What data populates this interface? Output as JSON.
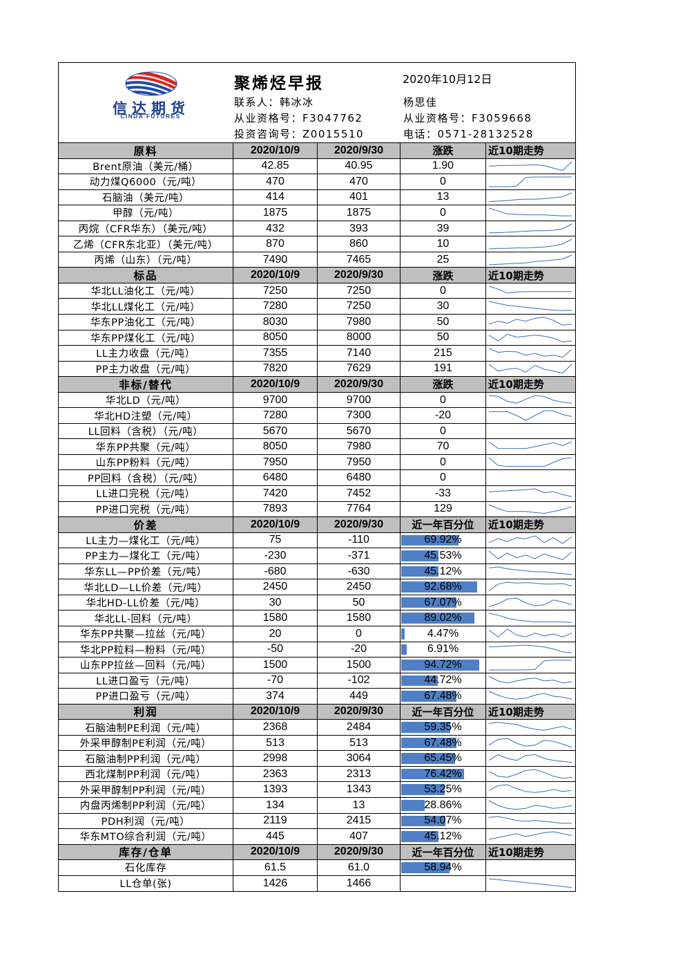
{
  "logo": {
    "name_cn": "信达期货",
    "name_en": "CINDA FUTURES"
  },
  "header": {
    "title": "聚烯烃早报",
    "date": "2020年10月12日",
    "contact_left": "联系人：韩冰冰",
    "contact_right": "杨思佳",
    "license_left": "从业资格号：F3047762",
    "license_right": "从业资格号：F3059668",
    "consult_left": "投资咨询号：Z0015510",
    "phone_right": "电话：0571-28132528"
  },
  "colors": {
    "header_bg": "#bfbfbf",
    "bar": "#4f7fc6",
    "spark": "#3a6db5",
    "logo_red": "#d9261c",
    "logo_blue": "#1f4aa8"
  },
  "sections": [
    {
      "headers": [
        "原料",
        "2020/10/9",
        "2020/9/30",
        "涨跌",
        "近10期走势"
      ],
      "rows": [
        {
          "label": "Brent原油（美元/桶）",
          "current": "42.85",
          "previous": "40.95",
          "change": "1.90",
          "trend": [
            0.55,
            0.6,
            0.62,
            0.63,
            0.65,
            0.7,
            0.6,
            0.35,
            0.1,
            1.0
          ]
        },
        {
          "label": "动力煤Q6000（元/吨）",
          "current": "470",
          "previous": "470",
          "change": "0",
          "trend": [
            0,
            0,
            0,
            0.05,
            0.95,
            1,
            1,
            1,
            1,
            1
          ]
        },
        {
          "label": "石脑油（美元/吨）",
          "current": "414",
          "previous": "401",
          "change": "13",
          "trend": [
            0.1,
            0.15,
            0.2,
            0.3,
            0.35,
            0.35,
            0.4,
            0.5,
            0.6,
            1.0
          ]
        },
        {
          "label": "甲醇（元/吨）",
          "current": "1875",
          "previous": "1875",
          "change": "0",
          "trend": [
            1,
            0.7,
            0.4,
            0.35,
            0.3,
            0.3,
            0.3,
            0.25,
            0.2,
            0.2
          ]
        },
        {
          "label": "丙烷（CFR华东）（美元/吨）",
          "current": "432",
          "previous": "393",
          "change": "39",
          "trend": [
            0.1,
            0.1,
            0.15,
            0.2,
            0.25,
            0.3,
            0.3,
            0.35,
            0.5,
            1.0
          ]
        },
        {
          "label": "乙烯（CFR东北亚）（美元/吨）",
          "current": "870",
          "previous": "860",
          "change": "10",
          "trend": [
            0,
            0.05,
            0.05,
            0.1,
            0.1,
            0.15,
            0.2,
            0.3,
            0.5,
            1.0
          ]
        },
        {
          "label": "丙烯（山东）（元/吨）",
          "current": "7490",
          "previous": "7465",
          "change": "25",
          "trend": [
            0,
            0.05,
            0.1,
            0.15,
            0.2,
            0.35,
            0.4,
            0.5,
            0.6,
            1.0
          ]
        }
      ]
    },
    {
      "headers": [
        "标品",
        "2020/10/9",
        "2020/9/30",
        "涨跌",
        "近10期走势"
      ],
      "rows": [
        {
          "label": "华北LL油化工（元/吨）",
          "current": "7250",
          "previous": "7250",
          "change": "0",
          "trend": [
            1,
            0.7,
            0.3,
            0.4,
            0.45,
            0.45,
            0.45,
            0.45,
            0.45,
            0.45
          ]
        },
        {
          "label": "华北LL煤化工（元/吨）",
          "current": "7280",
          "previous": "7250",
          "change": "30",
          "trend": [
            1,
            0.8,
            0.6,
            0.5,
            0.4,
            0.3,
            0.2,
            0.1,
            0.05,
            0.1
          ]
        },
        {
          "label": "华东PP油化工（元/吨）",
          "current": "8030",
          "previous": "7980",
          "change": "50",
          "trend": [
            0.3,
            0.6,
            0.4,
            0.8,
            0.6,
            0.9,
            1,
            0.7,
            0.2,
            0.3
          ]
        },
        {
          "label": "华东PP煤化工（元/吨）",
          "current": "8050",
          "previous": "8000",
          "change": "50",
          "trend": [
            0.8,
            0.2,
            0.9,
            0.6,
            0.7,
            0.8,
            0.7,
            0.5,
            0.1,
            0.2
          ]
        },
        {
          "label": "LL主力收盘（元/吨）",
          "current": "7355",
          "previous": "7140",
          "change": "215",
          "trend": [
            1,
            0.6,
            0.7,
            0.65,
            0.3,
            0.5,
            0.2,
            0.3,
            0.1,
            0.9
          ]
        },
        {
          "label": "PP主力收盘（元/吨）",
          "current": "7820",
          "previous": "7629",
          "change": "191",
          "trend": [
            1,
            0.3,
            0.5,
            0.6,
            0.2,
            0.9,
            0.5,
            0.3,
            0.1,
            1.0
          ]
        }
      ]
    },
    {
      "headers": [
        "非标/替代",
        "2020/10/9",
        "2020/9/30",
        "涨跌",
        "近10期走势"
      ],
      "rows": [
        {
          "label": "华北LD（元/吨）",
          "current": "9700",
          "previous": "9700",
          "change": "0",
          "trend": [
            1,
            0.9,
            0.4,
            0.2,
            0.6,
            1,
            0.9,
            0.5,
            0.3,
            0.2
          ]
        },
        {
          "label": "华北HD注塑（元/吨）",
          "current": "7280",
          "previous": "7300",
          "change": "-20",
          "trend": [
            0.9,
            0.9,
            0.9,
            0.5,
            0,
            0.5,
            1,
            1,
            0.6,
            0.4
          ]
        },
        {
          "label": "LL回料（含税）（元/吨）",
          "current": "5670",
          "previous": "5670",
          "change": "0",
          "trend": null
        },
        {
          "label": "华东PP共聚（元/吨）",
          "current": "8050",
          "previous": "7980",
          "change": "70",
          "trend": [
            1,
            0.3,
            0.3,
            0.3,
            0.3,
            0.5,
            0.7,
            0.9,
            0.6,
            1
          ]
        },
        {
          "label": "山东PP粉料（元/吨）",
          "current": "7950",
          "previous": "7950",
          "change": "0",
          "trend": [
            1,
            0.2,
            0.1,
            0.1,
            0.1,
            0.1,
            0.1,
            0.5,
            0.9,
            1
          ]
        },
        {
          "label": "PP回料（含税）（元/吨）",
          "current": "6480",
          "previous": "6480",
          "change": "0",
          "trend": null
        },
        {
          "label": "LL进口完税（元/吨）",
          "current": "7420",
          "previous": "7452",
          "change": "-33",
          "trend": [
            0.7,
            0.75,
            0.8,
            0.85,
            0.9,
            1.0,
            0.6,
            0.7,
            0.4,
            0.2
          ]
        },
        {
          "label": "PP进口完税（元/吨）",
          "current": "7893",
          "previous": "7764",
          "change": "129",
          "trend": [
            1,
            0.6,
            0.3,
            0.3,
            0.3,
            0.2,
            0.1,
            0.3,
            0.5,
            0.8
          ]
        }
      ]
    },
    {
      "headers": [
        "价差",
        "2020/10/9",
        "2020/9/30",
        "近一年百分位",
        "近10期走势"
      ],
      "rows": [
        {
          "label": "LL主力—煤化工（元/吨）",
          "current": "75",
          "previous": "-110",
          "percentile": "69.92%",
          "trend": [
            0.3,
            0.7,
            0.4,
            0.8,
            0.7,
            1,
            0.3,
            0.8,
            0.2,
            0.9
          ]
        },
        {
          "label": "PP主力—煤化工（元/吨）",
          "current": "-230",
          "previous": "-371",
          "percentile": "45.53%",
          "trend": [
            1,
            0.2,
            0.8,
            0.3,
            0.6,
            0.2,
            0.7,
            0.4,
            0.1,
            0.9
          ]
        },
        {
          "label": "华东LL—PP价差（元/吨）",
          "current": "-680",
          "previous": "-630",
          "percentile": "45.12%",
          "trend": [
            0.9,
            1,
            0.8,
            0.7,
            0.6,
            0.5,
            0.5,
            0.4,
            0.3,
            0.2
          ]
        },
        {
          "label": "华北LD—LL价差（元/吨）",
          "current": "2450",
          "previous": "2450",
          "percentile": "92.68%",
          "trend": [
            0.1,
            0.8,
            1,
            0.9,
            0.95,
            0.9,
            0.8,
            0.8,
            0.85,
            0.6
          ]
        },
        {
          "label": "华北HD-LL价差（元/吨）",
          "current": "30",
          "previous": "50",
          "percentile": "67.07%",
          "trend": [
            0.1,
            0.4,
            0.9,
            1,
            0.5,
            0.2,
            0.3,
            0.8,
            0.6,
            0.3
          ]
        },
        {
          "label": "华北LL-回料（元/吨）",
          "current": "1580",
          "previous": "1580",
          "percentile": "89.02%",
          "trend": [
            1,
            0.8,
            0.5,
            0.3,
            0.2,
            0.1,
            0.1,
            0.1,
            0.1,
            0.05
          ]
        },
        {
          "label": "华东PP共聚—拉丝（元/吨）",
          "current": "20",
          "previous": "0",
          "percentile": "4.47%",
          "trend": [
            0.9,
            0.2,
            1,
            0.4,
            0.2,
            0.6,
            0.3,
            0.5,
            0.2,
            0.6
          ]
        },
        {
          "label": "华北PP粒料—粉料（元/吨）",
          "current": "-50",
          "previous": "-20",
          "percentile": "6.91%",
          "trend": [
            0.8,
            0.85,
            0.9,
            0.95,
            1,
            0.9,
            0.8,
            0.6,
            0.3,
            0.2
          ]
        },
        {
          "label": "山东PP拉丝—回料（元/吨）",
          "current": "1500",
          "previous": "1500",
          "percentile": "94.72%",
          "trend": [
            0,
            0,
            0,
            0,
            0,
            0.05,
            0.95,
            1,
            1,
            1
          ]
        },
        {
          "label": "LL进口盈亏（元/吨）",
          "current": "-70",
          "previous": "-102",
          "percentile": "44.72%",
          "trend": [
            1,
            0.5,
            0.3,
            0.5,
            0.7,
            0.8,
            0.5,
            0.6,
            0.3,
            0.4
          ]
        },
        {
          "label": "PP进口盈亏（元/吨）",
          "current": "374",
          "previous": "449",
          "percentile": "67.48%",
          "trend": [
            1,
            0.6,
            0.3,
            0.2,
            0.3,
            0.6,
            0.8,
            0.5,
            0.4,
            0.2
          ]
        }
      ]
    },
    {
      "headers": [
        "利润",
        "2020/10/9",
        "2020/9/30",
        "近一年百分位",
        "近10期走势"
      ],
      "rows": [
        {
          "label": "石脑油制PE利润（元/吨）",
          "current": "2368",
          "previous": "2484",
          "percentile": "59.35%",
          "trend": [
            0.9,
            1,
            0.9,
            0.8,
            0.5,
            0.3,
            0.2,
            0.4,
            0.6,
            0.3
          ]
        },
        {
          "label": "外采甲醇制PE利润（元/吨）",
          "current": "513",
          "previous": "513",
          "percentile": "67.48%",
          "trend": [
            0.3,
            0.9,
            1,
            0.5,
            0.2,
            0.3,
            0.8,
            0.7,
            0.4,
            0.1
          ]
        },
        {
          "label": "石脑油制PP利润（元/吨）",
          "current": "2998",
          "previous": "3064",
          "percentile": "65.45%",
          "trend": [
            0.3,
            0.9,
            0.5,
            0.3,
            0.8,
            0.9,
            0.5,
            0.3,
            0.2,
            0.1
          ]
        },
        {
          "label": "西北煤制PP利润（元/吨）",
          "current": "2363",
          "previous": "2313",
          "percentile": "76.42%",
          "trend": [
            0.8,
            0.3,
            0.2,
            0.5,
            0.9,
            1,
            0.7,
            0.3,
            0.1,
            0.2
          ]
        },
        {
          "label": "外采甲醇制PP利润（元/吨）",
          "current": "1393",
          "previous": "1343",
          "percentile": "53.25%",
          "trend": [
            0.4,
            0.9,
            1,
            0.6,
            0.3,
            0.2,
            0.3,
            0.5,
            0.3,
            0.4
          ]
        },
        {
          "label": "内盘丙烯制PP利润（元/吨）",
          "current": "134",
          "previous": "13",
          "percentile": "28.86%",
          "trend": [
            1,
            0.5,
            0.2,
            0.1,
            0.2,
            0.5,
            0.4,
            0.2,
            0.3,
            0.5
          ]
        },
        {
          "label": "PDH利润（元/吨）",
          "current": "2119",
          "previous": "2415",
          "percentile": "54.07%",
          "trend": [
            0.9,
            1,
            0.8,
            0.6,
            0.5,
            0.6,
            0.5,
            0.4,
            0.3,
            0.3
          ]
        },
        {
          "label": "华东MTO综合利润（元/吨）",
          "current": "445",
          "previous": "407",
          "percentile": "45.12%",
          "trend": [
            0.2,
            0.4,
            0.6,
            0.8,
            0.5,
            0.7,
            0.9,
            1,
            0.8,
            0.6
          ]
        }
      ]
    },
    {
      "headers": [
        "库存/仓单",
        "2020/10/9",
        "2020/9/30",
        "近一年百分位",
        "近10期走势"
      ],
      "rows": [
        {
          "label": "石化库存",
          "current": "61.5",
          "previous": "61.0",
          "percentile": "58.94%",
          "trend": null
        },
        {
          "label": "LL仓单(张)",
          "current": "1426",
          "previous": "1466",
          "percentile": "",
          "trend": [
            1,
            0.9,
            0.8,
            0.7,
            0.6,
            0.5,
            0.4,
            0.3,
            0.2,
            0.1
          ]
        }
      ]
    }
  ]
}
